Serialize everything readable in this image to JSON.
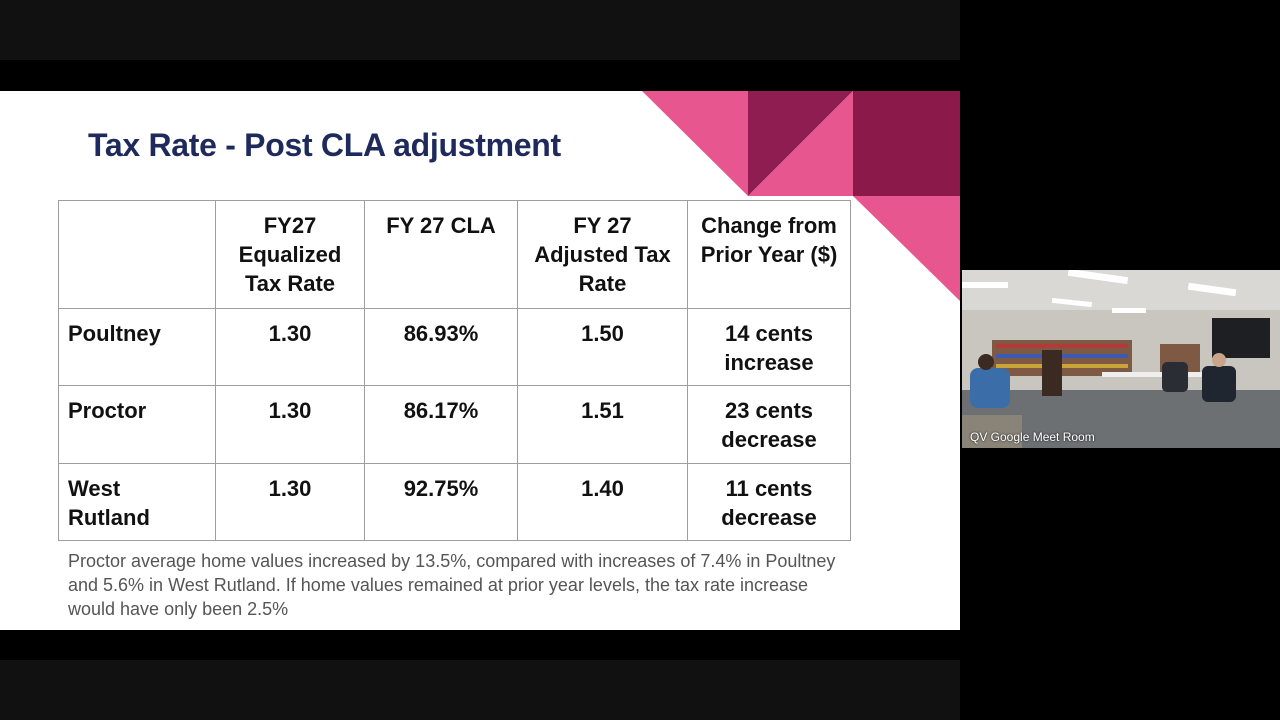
{
  "slide": {
    "title": "Tax Rate - Post CLA adjustment",
    "table": {
      "headers": [
        "",
        "FY27 Equalized Tax Rate",
        "FY 27  CLA",
        "FY 27 Adjusted Tax Rate",
        "Change from Prior Year ($)"
      ],
      "rows": [
        [
          "Poultney",
          "1.30",
          "86.93%",
          "1.50",
          "14 cents increase"
        ],
        [
          "Proctor",
          "1.30",
          "86.17%",
          "1.51",
          "23 cents decrease"
        ],
        [
          "West Rutland",
          "1.30",
          "92.75%",
          "1.40",
          "11 cents decrease"
        ]
      ]
    },
    "note": "Proctor average home values increased by 13.5%, compared with increases of 7.4% in Poultney and 5.6% in West Rutland. If home values remained at prior year levels, the tax rate increase would have only been 2.5%",
    "accent_colors": [
      "#e8568f",
      "#8b1a4a"
    ]
  },
  "video_tile": {
    "label": "QV Google Meet Room"
  }
}
